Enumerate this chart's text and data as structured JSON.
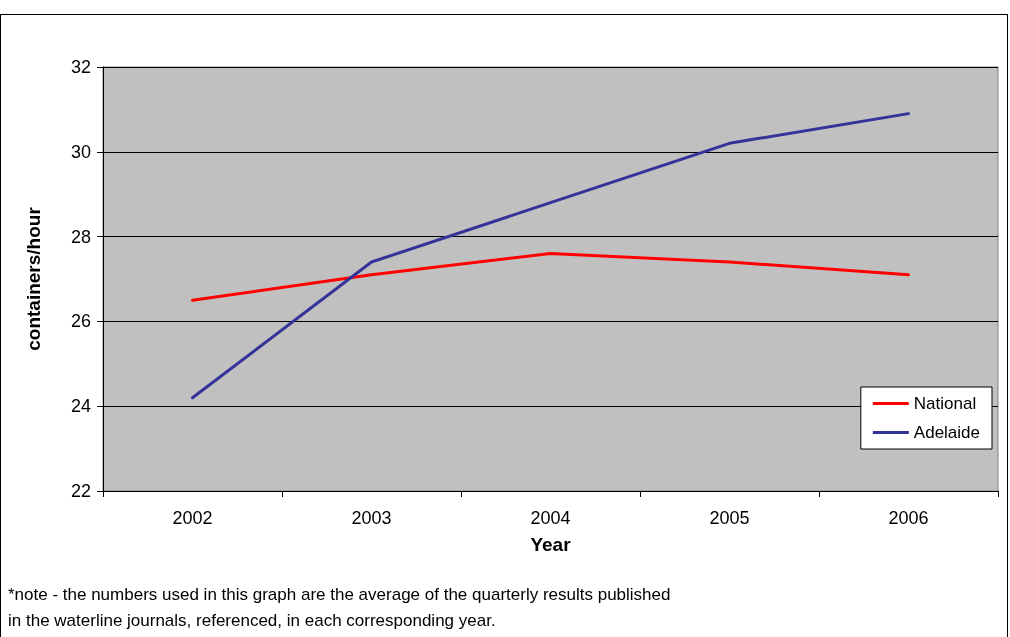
{
  "chart_data": {
    "type": "line",
    "xlabel": "Year",
    "ylabel": "containers/hour",
    "categories": [
      "2002",
      "2003",
      "2004",
      "2005",
      "2006"
    ],
    "series": [
      {
        "name": "National",
        "color": "#ff0000",
        "values": [
          26.5,
          27.1,
          27.6,
          27.4,
          27.1
        ]
      },
      {
        "name": "Adelaide",
        "color": "#333399",
        "values": [
          24.2,
          27.4,
          28.8,
          30.2,
          30.9
        ]
      }
    ],
    "ylim": [
      22,
      32
    ],
    "yticks": [
      22,
      24,
      26,
      28,
      30,
      32
    ],
    "grid": "y",
    "legend": "bottom right",
    "marker": "none",
    "line_style": "solid",
    "annotations": [
      "*note - the numbers used in this graph are the average of the quarterly results published\nin the waterline journals, referenced, in each corresponding year."
    ]
  }
}
